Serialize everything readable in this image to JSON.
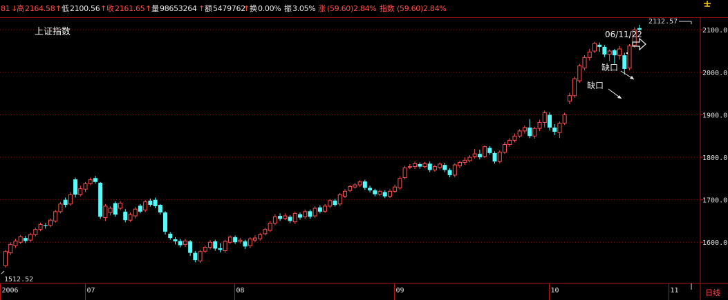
{
  "header": {
    "prefix": "81",
    "high_label": "高",
    "high": "2164.58",
    "low_label": "低",
    "low": "2100.56",
    "close_label": "收",
    "close": "2161.65",
    "volume_label": "量",
    "volume": "98653264",
    "amount_label": "额",
    "amount": "5479762",
    "turnover_label": "换",
    "turnover": "0.00%",
    "amplitude_label": "振",
    "amplitude": "3.05%",
    "change_label": "涨",
    "change": "(59.60)2.84%",
    "index_label": "指数",
    "index_change": "(59.60)2.84%"
  },
  "chart_title": "上证指数",
  "annotations": {
    "date": "06/11/22",
    "gap1": "缺口",
    "gap2": "缺口",
    "high_label": "2112.57",
    "low_label": "1512.52",
    "period": "日线"
  },
  "colors": {
    "up": "#ff5252",
    "down": "#54fcfc",
    "grid": "#7a1515",
    "background": "#000000",
    "text": "#e0e0e0",
    "label_red": "#ff4c4c"
  },
  "chart_data": {
    "type": "candlestick",
    "ylim": [
      1503,
      2128
    ],
    "yticks": [
      1600,
      1700,
      1800,
      1900,
      2000,
      2100
    ],
    "ytick_labels": [
      "1600.0",
      "1700.0",
      "1800.0",
      "1900.0",
      "2000.0",
      "2100.0"
    ],
    "xticks": [
      {
        "label": "2006",
        "index": 0
      },
      {
        "label": "07",
        "index": 17
      },
      {
        "label": "08",
        "index": 47
      },
      {
        "label": "09",
        "index": 79
      },
      {
        "label": "10",
        "index": 110
      },
      {
        "label": "11",
        "index": 134
      }
    ],
    "candles": [
      [
        1545,
        1578,
        1540,
        1582
      ],
      [
        1575,
        1595,
        1570,
        1600
      ],
      [
        1592,
        1603,
        1587,
        1608
      ],
      [
        1600,
        1613,
        1596,
        1617
      ],
      [
        1610,
        1603,
        1598,
        1615
      ],
      [
        1605,
        1618,
        1601,
        1622
      ],
      [
        1618,
        1630,
        1614,
        1634
      ],
      [
        1630,
        1642,
        1626,
        1646
      ],
      [
        1640,
        1638,
        1632,
        1645
      ],
      [
        1640,
        1652,
        1635,
        1656
      ],
      [
        1650,
        1672,
        1646,
        1676
      ],
      [
        1672,
        1690,
        1668,
        1695
      ],
      [
        1700,
        1688,
        1682,
        1705
      ],
      [
        1690,
        1712,
        1686,
        1718
      ],
      [
        1748,
        1712,
        1705,
        1752
      ],
      [
        1712,
        1726,
        1708,
        1733
      ],
      [
        1725,
        1738,
        1719,
        1742
      ],
      [
        1738,
        1747,
        1734,
        1752
      ],
      [
        1751,
        1742,
        1738,
        1756
      ],
      [
        1740,
        1660,
        1655,
        1742
      ],
      [
        1658,
        1685,
        1650,
        1690
      ],
      [
        1670,
        1680,
        1663,
        1685
      ],
      [
        1692,
        1665,
        1660,
        1696
      ],
      [
        1680,
        1692,
        1676,
        1697
      ],
      [
        1672,
        1652,
        1647,
        1678
      ],
      [
        1652,
        1665,
        1648,
        1670
      ],
      [
        1662,
        1678,
        1656,
        1683
      ],
      [
        1686,
        1672,
        1668,
        1690
      ],
      [
        1676,
        1695,
        1671,
        1699
      ],
      [
        1698,
        1688,
        1684,
        1703
      ],
      [
        1700,
        1685,
        1680,
        1705
      ],
      [
        1688,
        1670,
        1665,
        1690
      ],
      [
        1670,
        1625,
        1618,
        1673
      ],
      [
        1620,
        1610,
        1606,
        1624
      ],
      [
        1607,
        1602,
        1595,
        1612
      ],
      [
        1603,
        1593,
        1588,
        1608
      ],
      [
        1595,
        1603,
        1589,
        1608
      ],
      [
        1602,
        1575,
        1568,
        1605
      ],
      [
        1575,
        1558,
        1553,
        1579
      ],
      [
        1556,
        1578,
        1551,
        1582
      ],
      [
        1579,
        1588,
        1575,
        1592
      ],
      [
        1588,
        1600,
        1583,
        1605
      ],
      [
        1602,
        1585,
        1580,
        1606
      ],
      [
        1586,
        1582,
        1576,
        1598
      ],
      [
        1580,
        1602,
        1575,
        1606
      ],
      [
        1600,
        1612,
        1596,
        1616
      ],
      [
        1612,
        1600,
        1596,
        1616
      ],
      [
        1602,
        1605,
        1597,
        1610
      ],
      [
        1602,
        1590,
        1584,
        1606
      ],
      [
        1592,
        1608,
        1586,
        1612
      ],
      [
        1605,
        1610,
        1600,
        1616
      ],
      [
        1608,
        1618,
        1604,
        1622
      ],
      [
        1620,
        1630,
        1616,
        1634
      ],
      [
        1628,
        1645,
        1624,
        1650
      ],
      [
        1645,
        1660,
        1640,
        1666
      ],
      [
        1662,
        1655,
        1650,
        1668
      ],
      [
        1656,
        1662,
        1652,
        1668
      ],
      [
        1660,
        1650,
        1645,
        1664
      ],
      [
        1648,
        1668,
        1643,
        1672
      ],
      [
        1666,
        1658,
        1653,
        1670
      ],
      [
        1660,
        1672,
        1655,
        1677
      ],
      [
        1673,
        1660,
        1655,
        1677
      ],
      [
        1662,
        1680,
        1657,
        1685
      ],
      [
        1682,
        1672,
        1668,
        1687
      ],
      [
        1673,
        1685,
        1669,
        1690
      ],
      [
        1685,
        1698,
        1680,
        1702
      ],
      [
        1698,
        1688,
        1684,
        1702
      ],
      [
        1690,
        1712,
        1685,
        1716
      ],
      [
        1708,
        1720,
        1704,
        1725
      ],
      [
        1722,
        1731,
        1718,
        1735
      ],
      [
        1730,
        1735,
        1726,
        1740
      ],
      [
        1735,
        1742,
        1730,
        1746
      ],
      [
        1743,
        1728,
        1723,
        1747
      ],
      [
        1728,
        1722,
        1717,
        1733
      ],
      [
        1722,
        1713,
        1708,
        1726
      ],
      [
        1713,
        1720,
        1709,
        1723
      ],
      [
        1718,
        1708,
        1704,
        1722
      ],
      [
        1708,
        1720,
        1704,
        1725
      ],
      [
        1720,
        1730,
        1716,
        1736
      ],
      [
        1728,
        1750,
        1724,
        1755
      ],
      [
        1752,
        1775,
        1748,
        1780
      ],
      [
        1778,
        1778,
        1772,
        1784
      ],
      [
        1778,
        1785,
        1772,
        1790
      ],
      [
        1784,
        1778,
        1773,
        1788
      ],
      [
        1778,
        1785,
        1774,
        1789
      ],
      [
        1785,
        1770,
        1765,
        1790
      ],
      [
        1770,
        1778,
        1766,
        1782
      ],
      [
        1776,
        1784,
        1772,
        1788
      ],
      [
        1782,
        1770,
        1765,
        1787
      ],
      [
        1770,
        1758,
        1753,
        1774
      ],
      [
        1758,
        1782,
        1753,
        1786
      ],
      [
        1780,
        1788,
        1774,
        1792
      ],
      [
        1788,
        1793,
        1782,
        1800
      ],
      [
        1792,
        1800,
        1788,
        1805
      ],
      [
        1802,
        1808,
        1797,
        1820
      ],
      [
        1808,
        1800,
        1795,
        1818
      ],
      [
        1802,
        1825,
        1798,
        1828
      ],
      [
        1822,
        1810,
        1806,
        1826
      ],
      [
        1810,
        1790,
        1785,
        1814
      ],
      [
        1790,
        1812,
        1786,
        1816
      ],
      [
        1812,
        1830,
        1808,
        1836
      ],
      [
        1830,
        1840,
        1825,
        1845
      ],
      [
        1840,
        1850,
        1835,
        1856
      ],
      [
        1850,
        1862,
        1846,
        1866
      ],
      [
        1862,
        1870,
        1856,
        1875
      ],
      [
        1870,
        1850,
        1845,
        1890
      ],
      [
        1850,
        1868,
        1844,
        1872
      ],
      [
        1868,
        1882,
        1862,
        1888
      ],
      [
        1882,
        1905,
        1870,
        1910
      ],
      [
        1900,
        1870,
        1863,
        1906
      ],
      [
        1870,
        1860,
        1852,
        1878
      ],
      [
        1858,
        1880,
        1845,
        1884
      ],
      [
        1880,
        1900,
        1876,
        1905
      ],
      [
        1932,
        1945,
        1925,
        1952
      ],
      [
        1945,
        1985,
        1940,
        1990
      ],
      [
        1980,
        2015,
        1975,
        2020
      ],
      [
        2010,
        2035,
        2005,
        2040
      ],
      [
        2035,
        2048,
        2028,
        2055
      ],
      [
        2050,
        2068,
        2045,
        2072
      ],
      [
        2065,
        2060,
        2048,
        2070
      ],
      [
        2060,
        2042,
        2036,
        2064
      ],
      [
        2042,
        2050,
        2026,
        2054
      ],
      [
        2052,
        2040,
        2020,
        2055
      ],
      [
        2040,
        2055,
        2030,
        2062
      ],
      [
        2040,
        2008,
        1995,
        2046
      ],
      [
        2010,
        2062,
        2005,
        2066
      ],
      [
        2064,
        2100,
        2058,
        2106
      ],
      [
        2104,
        2100,
        2096,
        2112
      ]
    ]
  }
}
